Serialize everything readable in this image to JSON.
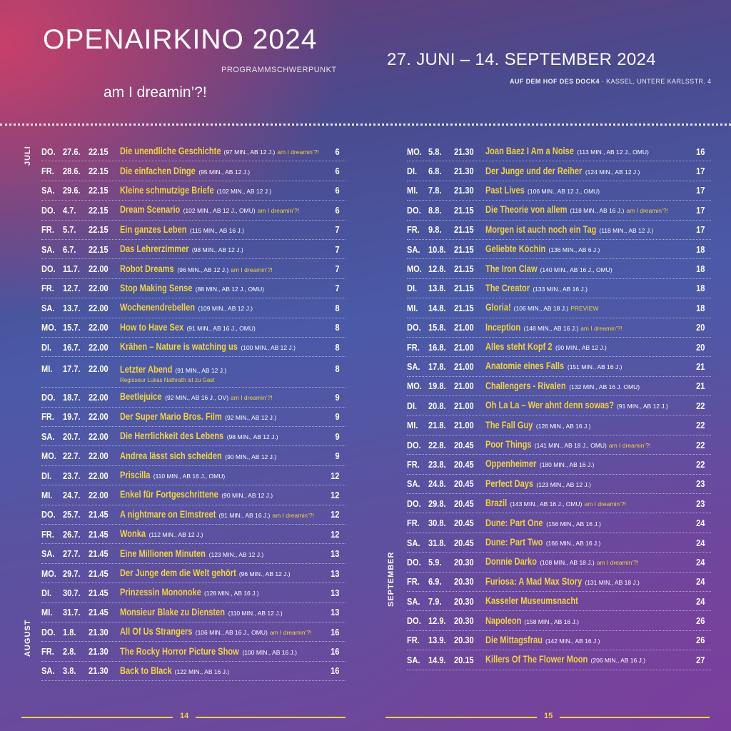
{
  "header": {
    "title": "OPENAIRKINO 2024",
    "subtitle_small": "PROGRAMMSCHWERPUNKT",
    "dreamin": "am I dreamin’?!",
    "dates": "27. JUNI – 14. SEPTEMBER 2024",
    "location_bold": "AUF DEM HOF DES DOCK4",
    "location_sep": "·",
    "location_rest": "KASSEL, UNTERE KARLSSTR. 4"
  },
  "months": {
    "july": "JULI",
    "august": "AUGUST",
    "september": "SEPTEMBER"
  },
  "pages": {
    "left": "14",
    "right": "15"
  },
  "left": [
    {
      "day": "DO.",
      "date": "27.6.",
      "time": "22.15",
      "title": "Die unendliche Geschichte",
      "info": "(97 MIN., AB 12 J.)",
      "tag": "am I dreamin’?!",
      "page": "6"
    },
    {
      "day": "FR.",
      "date": "28.6.",
      "time": "22.15",
      "title": "Die einfachen Dinge",
      "info": "(95 MIN., AB 12 J.)",
      "tag": "",
      "page": "6"
    },
    {
      "day": "SA.",
      "date": "29.6.",
      "time": "22.15",
      "title": "Kleine schmutzige Briefe",
      "info": "(102 MIN., AB 12 J.)",
      "tag": "",
      "page": "6"
    },
    {
      "day": "DO.",
      "date": "4.7.",
      "time": "22.15",
      "title": "Dream Scenario",
      "info": "(102 MIN., AB 12 J., OMU)",
      "tag": "am I dreamin’?!",
      "page": "6"
    },
    {
      "day": "FR.",
      "date": "5.7.",
      "time": "22.15",
      "title": "Ein ganzes Leben",
      "info": "(115 MIN., AB 16 J.)",
      "tag": "",
      "page": "7"
    },
    {
      "day": "SA.",
      "date": "6.7.",
      "time": "22.15",
      "title": "Das Lehrerzimmer",
      "info": "(98 MIN., AB 12 J.)",
      "tag": "",
      "page": "7"
    },
    {
      "day": "DO.",
      "date": "11.7.",
      "time": "22.00",
      "title": "Robot Dreams",
      "info": "(96 MIN., AB 12 J.)",
      "tag": "am I dreamin’?!",
      "page": "7"
    },
    {
      "day": "FR.",
      "date": "12.7.",
      "time": "22.00",
      "title": "Stop Making Sense",
      "info": "(88 MIN., AB 12 J., OMU)",
      "tag": "",
      "page": "7"
    },
    {
      "day": "SA.",
      "date": "13.7.",
      "time": "22.00",
      "title": "Wochenendrebellen",
      "info": "(109 MIN., AB 12 J.)",
      "tag": "",
      "page": "8"
    },
    {
      "day": "MO.",
      "date": "15.7.",
      "time": "22.00",
      "title": "How to Have Sex",
      "info": "(91 MIN., AB 16 J., OMU)",
      "tag": "",
      "page": "8"
    },
    {
      "day": "DI.",
      "date": "16.7.",
      "time": "22.00",
      "title": "Krähen – Nature is watching us",
      "info": "(100 MIN., AB 12 J.)",
      "tag": "",
      "page": "8"
    },
    {
      "day": "MI.",
      "date": "17.7.",
      "time": "22.00",
      "title": "Letzter Abend",
      "info": "(91 MIN., AB 12 J.)",
      "tag": "",
      "note": "Regisseur Lukas Nathrath ist zu Gast",
      "page": "8"
    },
    {
      "day": "DO.",
      "date": "18.7.",
      "time": "22.00",
      "title": "Beetlejuice",
      "info": "(92 MIN., AB 16 J., OV)",
      "tag": "am I dreamin’?!",
      "page": "9"
    },
    {
      "day": "FR.",
      "date": "19.7.",
      "time": "22.00",
      "title": "Der Super Mario Bros. Film",
      "info": "(92 MIN., AB 12 J.)",
      "tag": "",
      "page": "9"
    },
    {
      "day": "SA.",
      "date": "20.7.",
      "time": "22.00",
      "title": "Die Herrlichkeit des Lebens",
      "info": "(98 MIN., AB 12 J.)",
      "tag": "",
      "page": "9"
    },
    {
      "day": "MO.",
      "date": "22.7.",
      "time": "22.00",
      "title": "Andrea lässt sich scheiden",
      "info": "(90 MIN., AB 12 J.)",
      "tag": "",
      "page": "9"
    },
    {
      "day": "DI.",
      "date": "23.7.",
      "time": "22.00",
      "title": "Priscilla",
      "info": "(110 MIN., AB 16 J., OMU)",
      "tag": "",
      "page": "12"
    },
    {
      "day": "MI.",
      "date": "24.7.",
      "time": "22.00",
      "title": "Enkel für Fortgeschrittene",
      "info": "(90 MIN., AB 12 J.)",
      "tag": "",
      "page": "12"
    },
    {
      "day": "DO.",
      "date": "25.7.",
      "time": "21.45",
      "title": "A nightmare on Elmstreet",
      "info": "(91 MIN., AB 16 J.)",
      "tag": "am I dreamin’?!",
      "page": "12"
    },
    {
      "day": "FR.",
      "date": "26.7.",
      "time": "21.45",
      "title": "Wonka",
      "info": "(112 MIN., AB 12 J.)",
      "tag": "",
      "page": "12"
    },
    {
      "day": "SA.",
      "date": "27.7.",
      "time": "21.45",
      "title": "Eine Millionen Minuten",
      "info": "(123 MIN., AB 12 J.)",
      "tag": "",
      "page": "13"
    },
    {
      "day": "MO.",
      "date": "29.7.",
      "time": "21.45",
      "title": "Der Junge dem die Welt gehört",
      "info": "(96 MIN., AB 12 J.)",
      "tag": "",
      "page": "13"
    },
    {
      "day": "DI.",
      "date": "30.7.",
      "time": "21.45",
      "title": "Prinzessin Mononoke",
      "info": "(128 MIN., AB 16 J.)",
      "tag": "",
      "page": "13"
    },
    {
      "day": "MI.",
      "date": "31.7.",
      "time": "21.45",
      "title": "Monsieur Blake zu Diensten",
      "info": "(110 MIN., AB 12 J.)",
      "tag": "",
      "page": "13"
    },
    {
      "day": "DO.",
      "date": "1.8.",
      "time": "21.30",
      "title": "All Of Us Strangers",
      "info": "(106 MIN., AB 16 J., OMU)",
      "tag": "am I dreamin’?!",
      "page": "16"
    },
    {
      "day": "FR.",
      "date": "2.8.",
      "time": "21.30",
      "title": "The Rocky Horror Picture Show",
      "info": "(100 MIN., AB 16 J.)",
      "tag": "",
      "page": "16"
    },
    {
      "day": "SA.",
      "date": "3.8.",
      "time": "21.30",
      "title": "Back to Black",
      "info": "(122 MIN., AB 16 J.)",
      "tag": "",
      "page": "16"
    }
  ],
  "right": [
    {
      "day": "MO.",
      "date": "5.8.",
      "time": "21.30",
      "title": "Joan Baez I Am a Noise",
      "info": "(113 MIN., AB 12 J., OMU)",
      "tag": "",
      "page": "16"
    },
    {
      "day": "DI.",
      "date": "6.8.",
      "time": "21.30",
      "title": "Der Junge und der Reiher",
      "info": "(124 MIN., AB 12 J.)",
      "tag": "",
      "page": "17"
    },
    {
      "day": "MI.",
      "date": "7.8.",
      "time": "21.30",
      "title": "Past Lives",
      "info": "(106 MIN., AB 12 J., OMU)",
      "tag": "",
      "page": "17"
    },
    {
      "day": "DO.",
      "date": "8.8.",
      "time": "21.15",
      "title": "Die Theorie von allem",
      "info": "(118 MIN., AB 16 J.)",
      "tag": "am I dreamin’?!",
      "page": "17"
    },
    {
      "day": "FR.",
      "date": "9.8.",
      "time": "21.15",
      "title": "Morgen ist auch noch ein Tag",
      "info": "(118 MIN., AB 12 J.)",
      "tag": "",
      "page": "17"
    },
    {
      "day": "SA.",
      "date": "10.8.",
      "time": "21.15",
      "title": "Geliebte Köchin",
      "info": "(136 MIN., AB 6 J.)",
      "tag": "",
      "page": "18"
    },
    {
      "day": "MO.",
      "date": "12.8.",
      "time": "21.15",
      "title": "The Iron Claw",
      "info": "(140 MIN., AB 16 J., OMU)",
      "tag": "",
      "page": "18"
    },
    {
      "day": "DI.",
      "date": "13.8.",
      "time": "21.15",
      "title": "The Creator",
      "info": "(133 MIN., AB 16 J.)",
      "tag": "",
      "page": "18"
    },
    {
      "day": "MI.",
      "date": "14.8.",
      "time": "21.15",
      "title": "Gloria!",
      "info": "(106 MIN., AB 18 J.)",
      "tag": "PREVIEW",
      "page": "18"
    },
    {
      "day": "DO.",
      "date": "15.8.",
      "time": "21.00",
      "title": "Inception",
      "info": "(148 MIN., AB 16 J.)",
      "tag": "am I dreamin’?!",
      "page": "20"
    },
    {
      "day": "FR.",
      "date": "16.8.",
      "time": "21.00",
      "title": "Alles steht Kopf 2",
      "info": "(90 MIN., AB 12 J.)",
      "tag": "",
      "page": "20"
    },
    {
      "day": "SA.",
      "date": "17.8.",
      "time": "21.00",
      "title": "Anatomie eines Falls",
      "info": "(151 MIN., AB 16 J.)",
      "tag": "",
      "page": "21"
    },
    {
      "day": "MO.",
      "date": "19.8.",
      "time": "21.00",
      "title": "Challengers - Rivalen",
      "info": "(132 MIN., AB 16 J. OMU)",
      "tag": "",
      "page": "21"
    },
    {
      "day": "DI.",
      "date": "20.8.",
      "time": "21.00",
      "title": "Oh La La – Wer ahnt denn sowas?",
      "info": "(91 MIN., AB 12 J.)",
      "tag": "",
      "page": "22"
    },
    {
      "day": "MI.",
      "date": "21.8.",
      "time": "21.00",
      "title": "The Fall Guy",
      "info": "(126 MIN., AB 16 J.)",
      "tag": "",
      "page": "22"
    },
    {
      "day": "DO.",
      "date": "22.8.",
      "time": "20.45",
      "title": "Poor Things",
      "info": "(141 MIN., AB 18 J., OMU)",
      "tag": "am I dreamin’?!",
      "page": "22"
    },
    {
      "day": "FR.",
      "date": "23.8.",
      "time": "20.45",
      "title": "Oppenheimer",
      "info": "(180 MIN., AB 16 J.)",
      "tag": "",
      "page": "22"
    },
    {
      "day": "SA.",
      "date": "24.8.",
      "time": "20.45",
      "title": "Perfect Days",
      "info": "(123 MIN., AB 12 J.)",
      "tag": "",
      "page": "23"
    },
    {
      "day": "DO.",
      "date": "29.8.",
      "time": "20.45",
      "title": "Brazil",
      "info": "(143 MIN., AB 16 J., OMU)",
      "tag": "am I dreamin’?!",
      "page": "23"
    },
    {
      "day": "FR.",
      "date": "30.8.",
      "time": "20.45",
      "title": "Dune: Part One",
      "info": "(156 MIN., AB 16 J.)",
      "tag": "",
      "page": "24"
    },
    {
      "day": "SA.",
      "date": "31.8.",
      "time": "20.45",
      "title": "Dune: Part Two",
      "info": "(166 MIN., AB 16 J.)",
      "tag": "",
      "page": "24"
    },
    {
      "day": "DO.",
      "date": "5.9.",
      "time": "20.30",
      "title": "Donnie Darko",
      "info": "(108 MIN., AB 18 J.)",
      "tag": "am I dreamin’?!",
      "page": "24"
    },
    {
      "day": "FR.",
      "date": "6.9.",
      "time": "20.30",
      "title": "Furiosa: A Mad Max Story",
      "info": "(131 MIN., AB 18 J.)",
      "tag": "",
      "page": "24"
    },
    {
      "day": "SA.",
      "date": "7.9.",
      "time": "20.30",
      "title": "Kasseler Museumsnacht",
      "info": "",
      "tag": "",
      "page": "24"
    },
    {
      "day": "DO.",
      "date": "12.9.",
      "time": "20.30",
      "title": "Napoleon",
      "info": "(158 MIN., AB 16 J.)",
      "tag": "",
      "page": "26"
    },
    {
      "day": "FR.",
      "date": "13.9.",
      "time": "20.30",
      "title": "Die Mittagsfrau",
      "info": "(142 MIN., AB 16 J.)",
      "tag": "",
      "page": "26"
    },
    {
      "day": "SA.",
      "date": "14.9.",
      "time": "20.15",
      "title": "Killers Of The Flower Moon",
      "info": "(206 MIN., AB 16 J.)",
      "tag": "",
      "page": "27"
    }
  ]
}
